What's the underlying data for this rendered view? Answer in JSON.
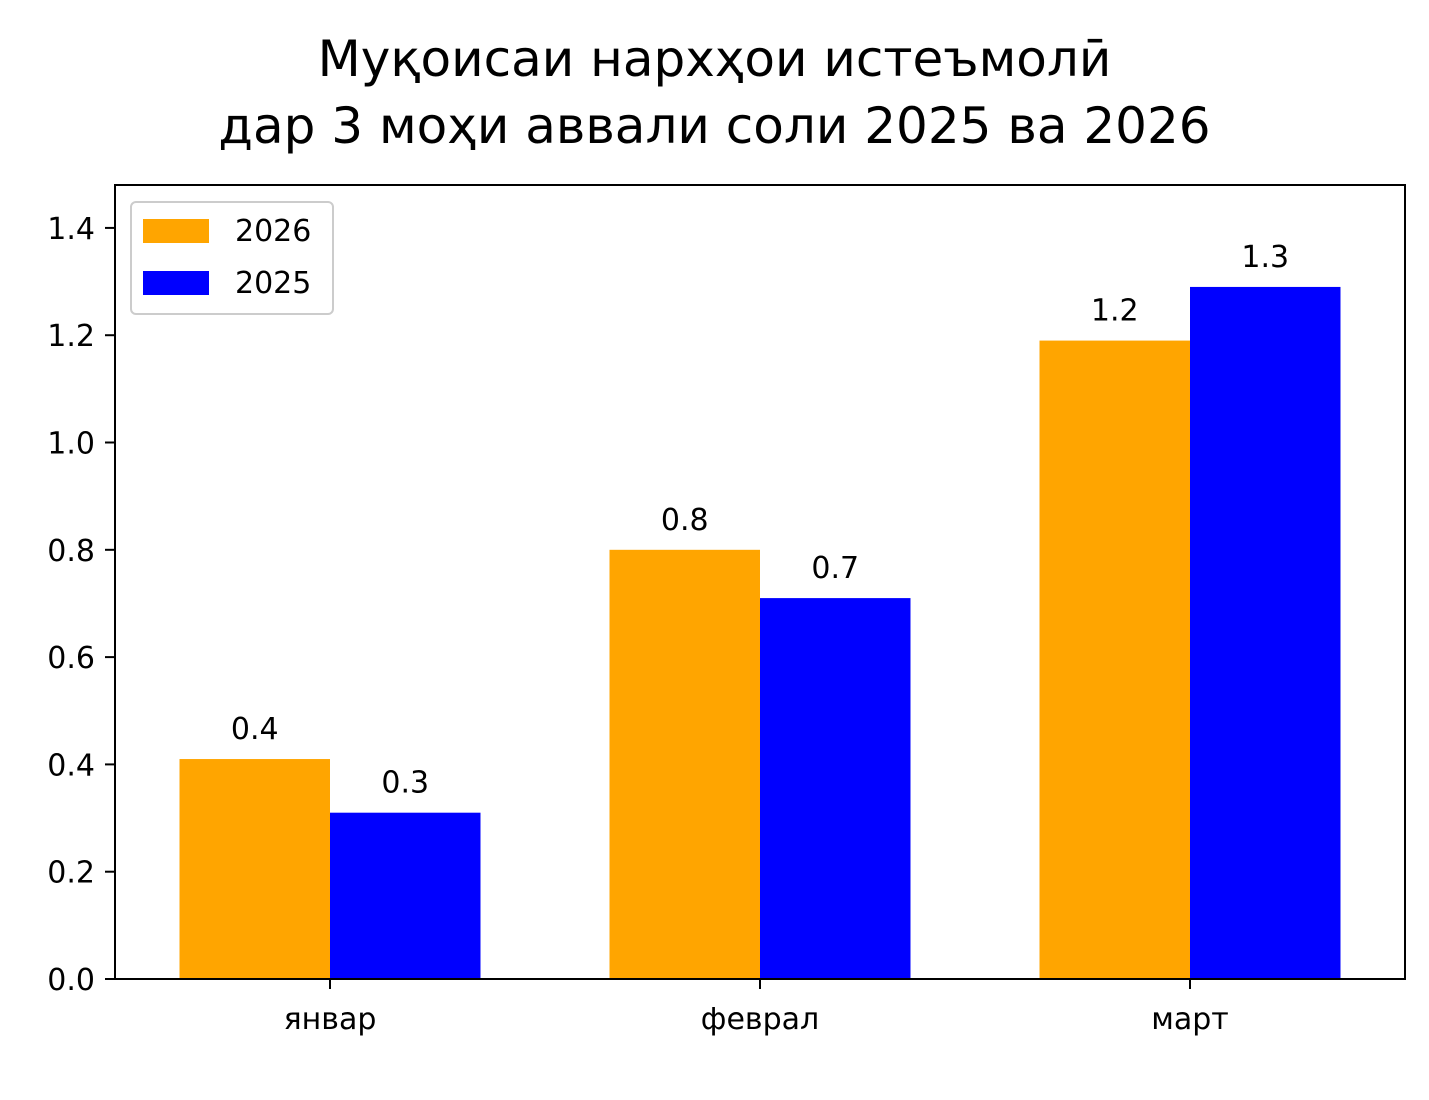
{
  "chart": {
    "title_line1": "Муқоисаи нархҳои истеъмолӣ",
    "title_line2": "дар 3 моҳи аввали соли 2025 ва 2026"
  },
  "colors": {
    "series_2026": "#ffa500",
    "series_2025": "#0000ff",
    "axis": "#000000",
    "text": "#000000",
    "legend_border": "#cccccc"
  },
  "chart_data": {
    "type": "bar",
    "title": "Муқоисаи нархҳои истеъмолӣ дар 3 моҳи аввали соли 2025 ва 2026",
    "xlabel": "",
    "ylabel": "",
    "categories": [
      "январ",
      "феврал",
      "март"
    ],
    "series": [
      {
        "name": "2026",
        "values": [
          0.41,
          0.8,
          1.19
        ],
        "labels": [
          "0.4",
          "0.8",
          "1.2"
        ],
        "color": "#ffa500"
      },
      {
        "name": "2025",
        "values": [
          0.31,
          0.71,
          1.29
        ],
        "labels": [
          "0.3",
          "0.7",
          "1.3"
        ],
        "color": "#0000ff"
      }
    ],
    "ylim": [
      0,
      1.48
    ],
    "yticks": [
      "0.0",
      "0.2",
      "0.4",
      "0.6",
      "0.8",
      "1.0",
      "1.2",
      "1.4"
    ],
    "grid": false,
    "legend_position": "top-left"
  }
}
